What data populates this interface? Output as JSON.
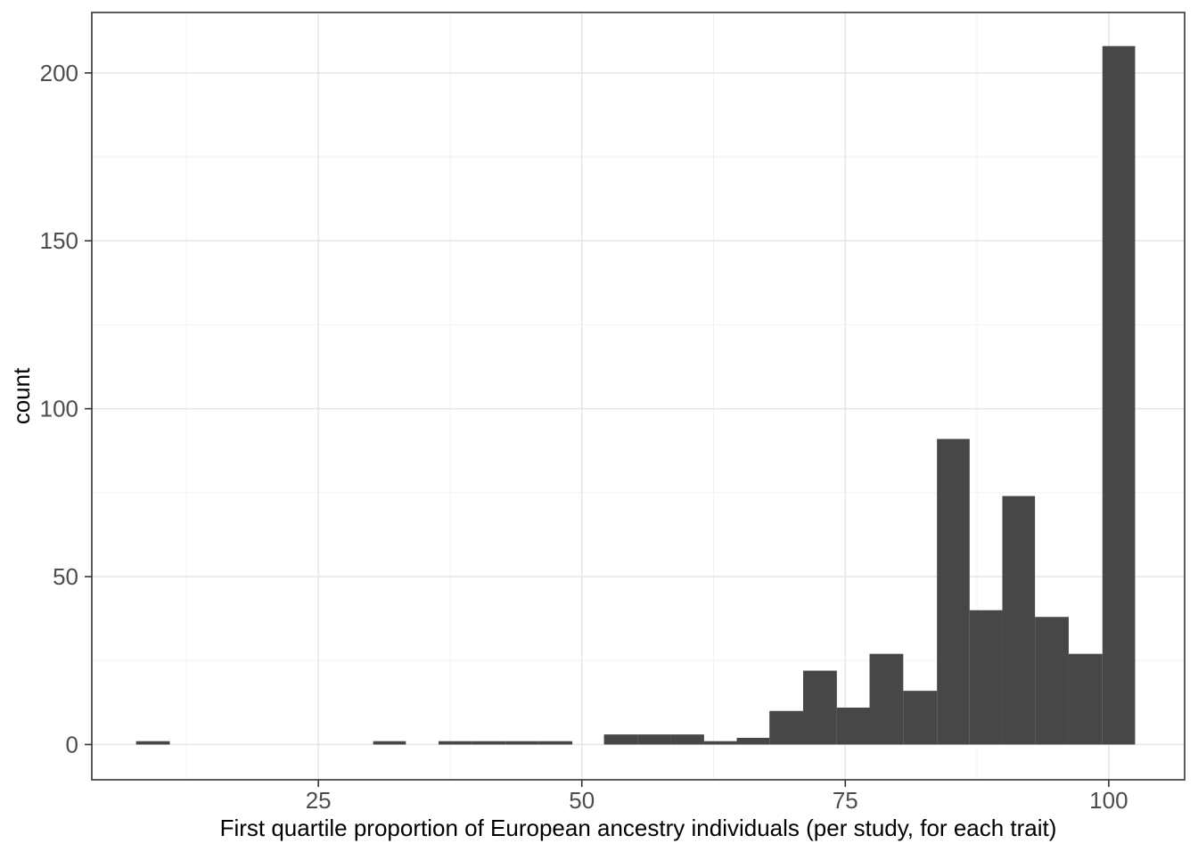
{
  "chart_data": {
    "type": "bar",
    "subtype": "histogram",
    "title": "",
    "xlabel": "First quartile proportion of European ancestry individuals (per study, for each trait)",
    "ylabel": "count",
    "x_ticks": [
      25,
      50,
      75,
      100
    ],
    "y_ticks": [
      0,
      50,
      100,
      150,
      200
    ],
    "x_minor_gridlines": [
      12.5,
      37.5,
      62.5,
      87.5
    ],
    "y_minor_gridlines": [
      25,
      75,
      125,
      175
    ],
    "xlim": [
      3.5,
      107.2
    ],
    "ylim": [
      -10.5,
      218
    ],
    "grid": "major+minor",
    "legend": "none",
    "bins": [
      {
        "x0": 7.7,
        "x1": 10.9,
        "count": 1
      },
      {
        "x0": 30.2,
        "x1": 33.3,
        "count": 1
      },
      {
        "x0": 36.4,
        "x1": 39.6,
        "count": 1
      },
      {
        "x0": 39.6,
        "x1": 42.8,
        "count": 1
      },
      {
        "x0": 42.8,
        "x1": 45.9,
        "count": 1
      },
      {
        "x0": 45.9,
        "x1": 49.1,
        "count": 1
      },
      {
        "x0": 52.1,
        "x1": 55.3,
        "count": 3
      },
      {
        "x0": 55.3,
        "x1": 58.4,
        "count": 3
      },
      {
        "x0": 58.4,
        "x1": 61.6,
        "count": 3
      },
      {
        "x0": 61.6,
        "x1": 64.7,
        "count": 1
      },
      {
        "x0": 64.7,
        "x1": 67.8,
        "count": 2
      },
      {
        "x0": 67.8,
        "x1": 71.0,
        "count": 10
      },
      {
        "x0": 71.0,
        "x1": 74.2,
        "count": 22
      },
      {
        "x0": 74.2,
        "x1": 77.3,
        "count": 11
      },
      {
        "x0": 77.3,
        "x1": 80.5,
        "count": 27
      },
      {
        "x0": 80.5,
        "x1": 83.7,
        "count": 16
      },
      {
        "x0": 83.7,
        "x1": 86.8,
        "count": 91
      },
      {
        "x0": 86.8,
        "x1": 89.9,
        "count": 40
      },
      {
        "x0": 89.9,
        "x1": 93.0,
        "count": 74
      },
      {
        "x0": 93.0,
        "x1": 96.2,
        "count": 38
      },
      {
        "x0": 96.2,
        "x1": 99.4,
        "count": 27
      },
      {
        "x0": 99.4,
        "x1": 102.5,
        "count": 208
      }
    ],
    "colors": {
      "bar_fill": "#474747",
      "panel_background": "#ffffff",
      "panel_border": "#333333",
      "grid_major": "#e6e6e6",
      "grid_minor": "#f2f2f2",
      "tick_mark": "#333333",
      "tick_label": "#4d4d4d",
      "axis_title": "#000000"
    }
  }
}
